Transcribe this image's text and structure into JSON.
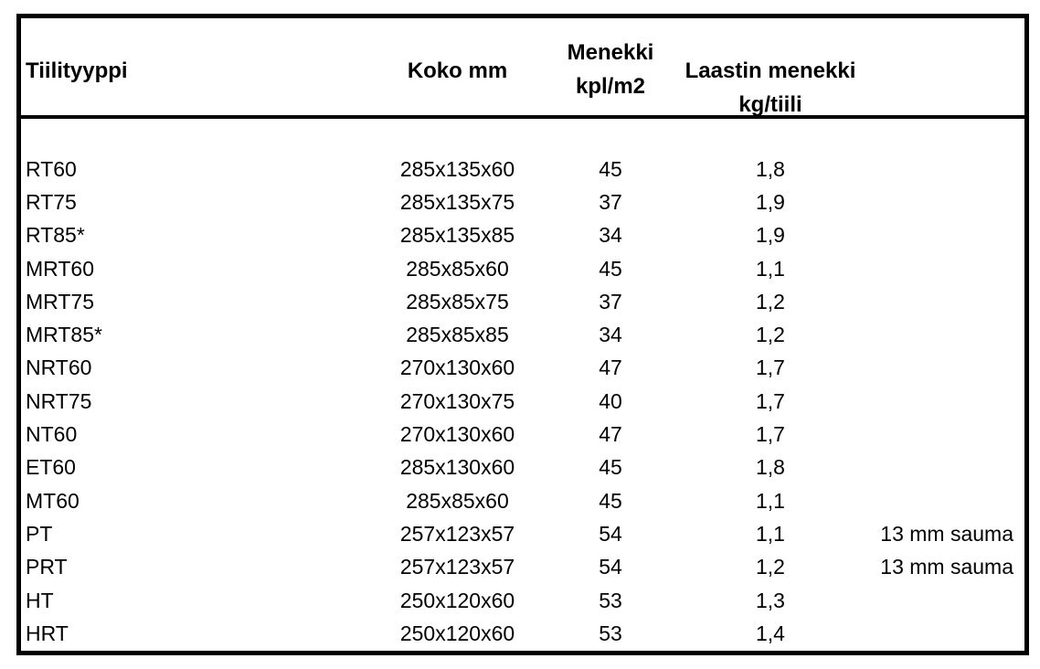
{
  "colors": {
    "border": "#000000",
    "text": "#000000",
    "background": "#ffffff"
  },
  "table": {
    "columns": [
      {
        "line1": "Tiilityyppi",
        "line2": ""
      },
      {
        "line1": "Koko mm",
        "line2": ""
      },
      {
        "line1": "Menekki",
        "line2": "kpl/m2"
      },
      {
        "line1": "Laastin menekki",
        "line2": "kg/tiili"
      },
      {
        "line1": "",
        "line2": ""
      }
    ],
    "rows": [
      {
        "type": "RT60",
        "koko": "285x135x60",
        "menekki": "45",
        "laasti": "1,8",
        "note": ""
      },
      {
        "type": "RT75",
        "koko": "285x135x75",
        "menekki": "37",
        "laasti": "1,9",
        "note": ""
      },
      {
        "type": "RT85*",
        "koko": "285x135x85",
        "menekki": "34",
        "laasti": "1,9",
        "note": ""
      },
      {
        "type": "MRT60",
        "koko": "285x85x60",
        "menekki": "45",
        "laasti": "1,1",
        "note": ""
      },
      {
        "type": "MRT75",
        "koko": "285x85x75",
        "menekki": "37",
        "laasti": "1,2",
        "note": ""
      },
      {
        "type": "MRT85*",
        "koko": "285x85x85",
        "menekki": "34",
        "laasti": "1,2",
        "note": ""
      },
      {
        "type": "NRT60",
        "koko": "270x130x60",
        "menekki": "47",
        "laasti": "1,7",
        "note": ""
      },
      {
        "type": "NRT75",
        "koko": "270x130x75",
        "menekki": "40",
        "laasti": "1,7",
        "note": ""
      },
      {
        "type": "NT60",
        "koko": "270x130x60",
        "menekki": "47",
        "laasti": "1,7",
        "note": ""
      },
      {
        "type": "ET60",
        "koko": "285x130x60",
        "menekki": "45",
        "laasti": "1,8",
        "note": ""
      },
      {
        "type": "MT60",
        "koko": "285x85x60",
        "menekki": "45",
        "laasti": "1,1",
        "note": ""
      },
      {
        "type": "PT",
        "koko": "257x123x57",
        "menekki": "54",
        "laasti": "1,1",
        "note": "13 mm sauma"
      },
      {
        "type": "PRT",
        "koko": "257x123x57",
        "menekki": "54",
        "laasti": "1,2",
        "note": "13 mm sauma"
      },
      {
        "type": "HT",
        "koko": "250x120x60",
        "menekki": "53",
        "laasti": "1,3",
        "note": ""
      },
      {
        "type": "HRT",
        "koko": "250x120x60",
        "menekki": "53",
        "laasti": "1,4",
        "note": ""
      }
    ]
  }
}
